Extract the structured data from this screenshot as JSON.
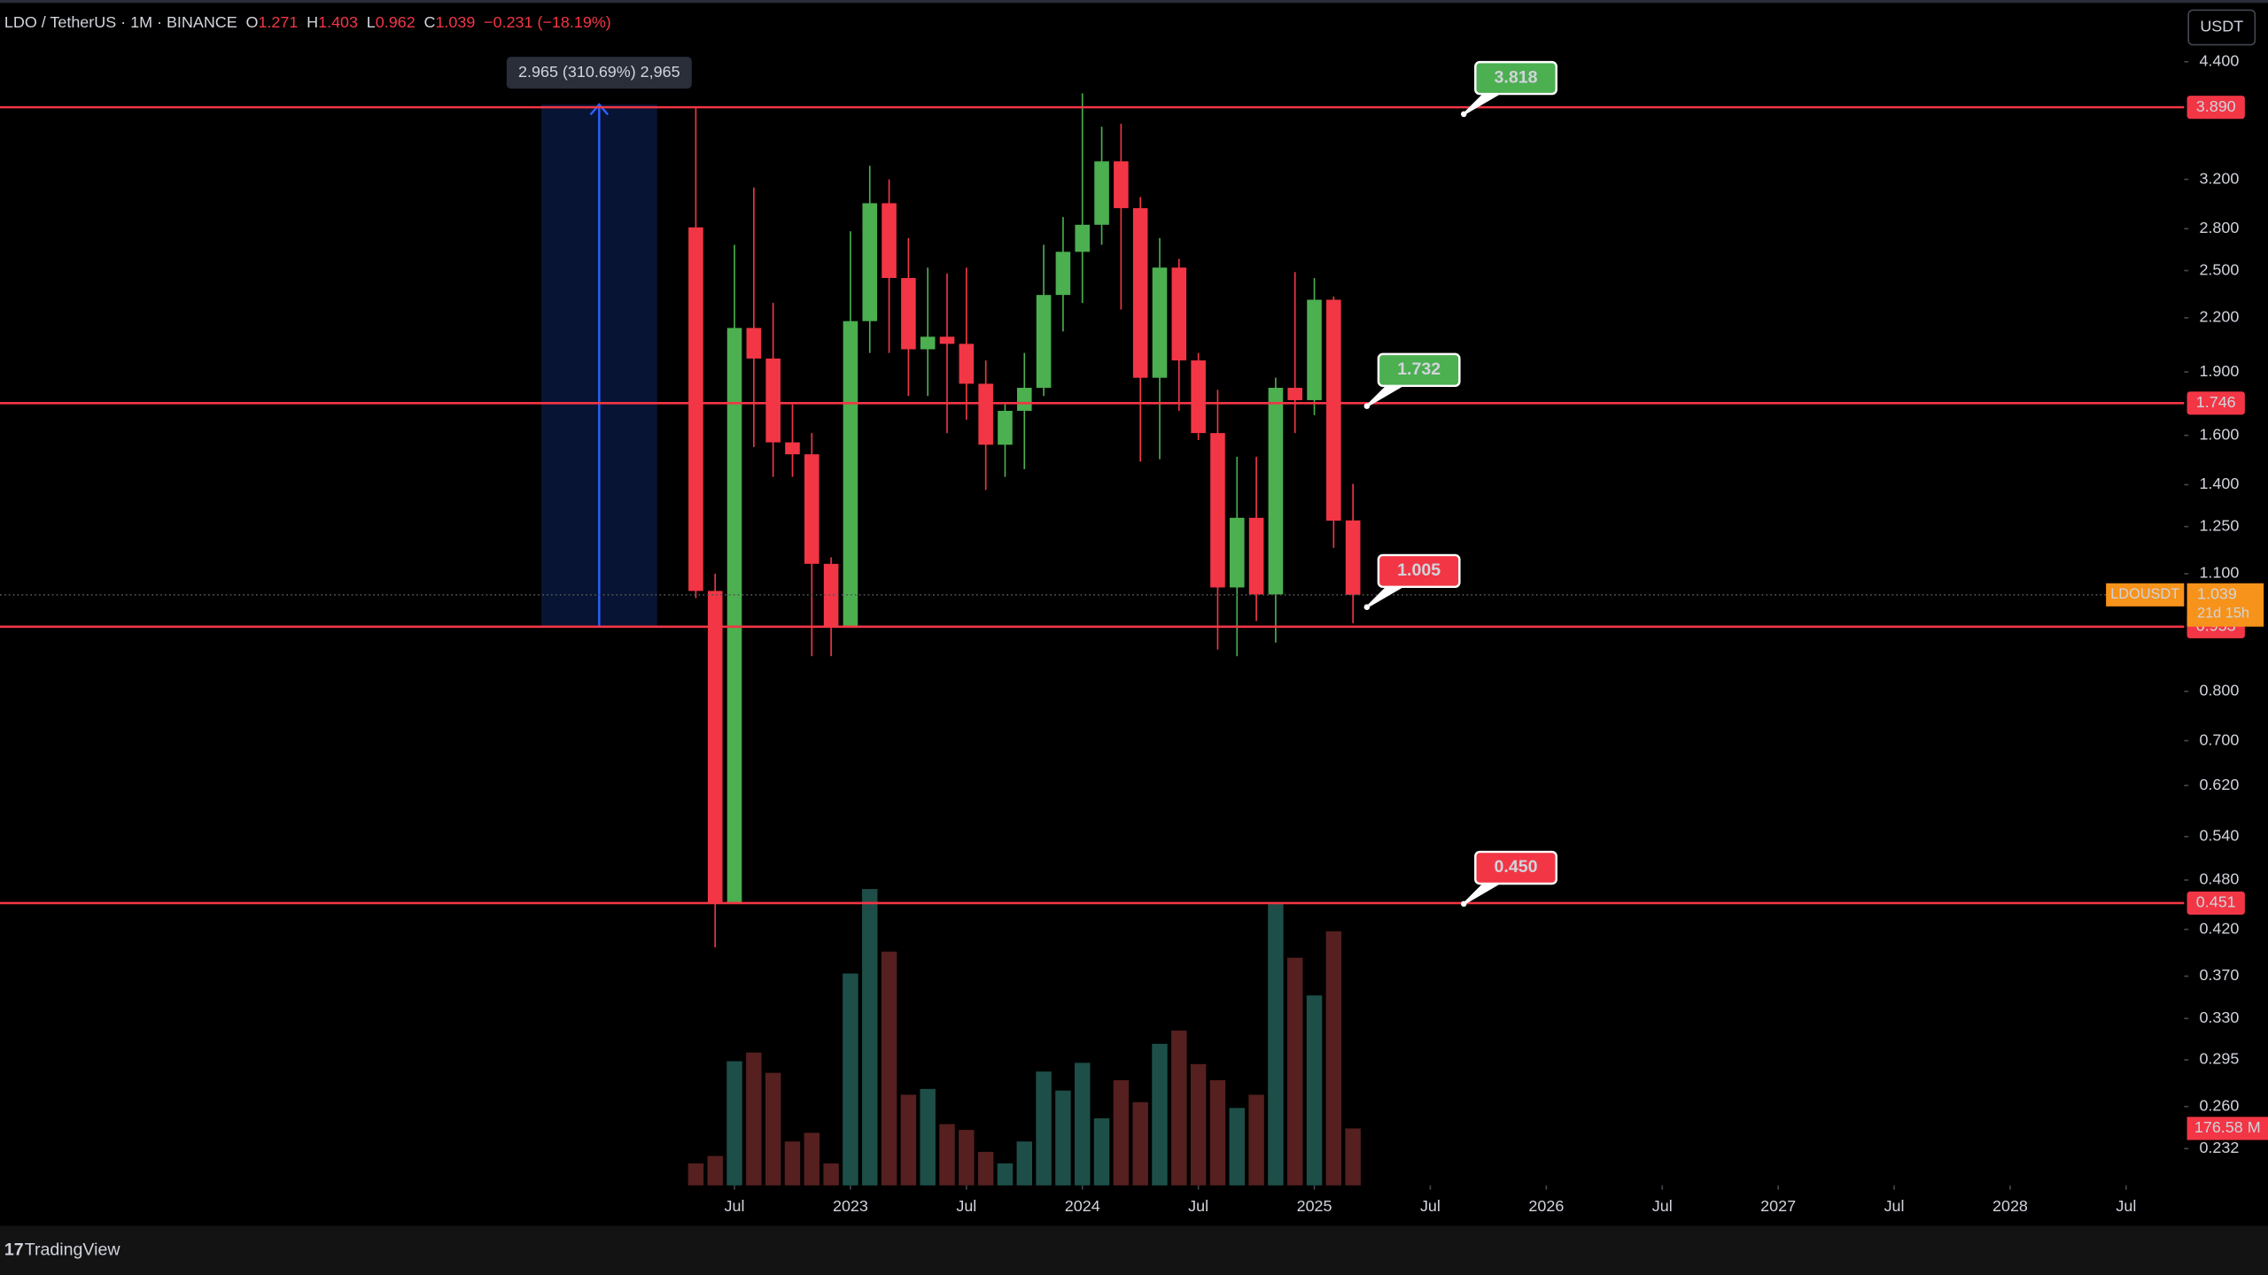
{
  "chart_data": {
    "type": "candlestick",
    "title": "LDO / TetherUS · 1M · BINANCE",
    "legend_ohlc": [
      {
        "key": "O",
        "value": 1.271
      },
      {
        "key": "H",
        "value": 1.403
      },
      {
        "key": "L",
        "value": 0.962
      },
      {
        "key": "C",
        "value": 1.039
      }
    ],
    "change": "−0.231 (−18.19%)",
    "currency": "USDT",
    "brand": "TradingView",
    "x": [
      "2022-05",
      "2022-06",
      "2022-07",
      "2022-08",
      "2022-09",
      "2022-10",
      "2022-11",
      "2022-12",
      "2023-01",
      "2023-02",
      "2023-03",
      "2023-04",
      "2023-05",
      "2023-06",
      "2023-07",
      "2023-08",
      "2023-09",
      "2023-10",
      "2023-11",
      "2023-12",
      "2024-01",
      "2024-02",
      "2024-03",
      "2024-04",
      "2024-05",
      "2024-06",
      "2024-07",
      "2024-08",
      "2024-09",
      "2024-10",
      "2024-11",
      "2024-12",
      "2025-01",
      "2025-02",
      "2025-03"
    ],
    "open": [
      2.81,
      1.05,
      0.45,
      2.14,
      1.97,
      1.57,
      1.52,
      1.13,
      0.953,
      2.18,
      3.0,
      2.45,
      2.02,
      2.09,
      2.05,
      1.84,
      1.56,
      1.71,
      1.82,
      2.34,
      2.63,
      2.83,
      3.36,
      2.96,
      1.87,
      2.52,
      1.96,
      1.61,
      1.06,
      1.28,
      1.04,
      1.82,
      1.76,
      2.31,
      1.271
    ],
    "high": [
      3.88,
      1.1,
      2.68,
      3.13,
      2.29,
      1.74,
      1.61,
      1.15,
      2.78,
      3.32,
      3.2,
      2.73,
      2.52,
      2.48,
      2.52,
      1.96,
      1.74,
      2.0,
      2.68,
      2.89,
      4.04,
      3.69,
      3.72,
      3.05,
      2.73,
      2.58,
      2.0,
      1.81,
      1.51,
      1.51,
      1.87,
      2.49,
      2.45,
      2.33,
      1.403
    ],
    "low": [
      1.03,
      0.4,
      0.45,
      1.55,
      1.43,
      1.43,
      0.88,
      0.88,
      0.95,
      2.0,
      2.0,
      1.78,
      1.78,
      1.61,
      1.67,
      1.38,
      1.43,
      1.46,
      1.78,
      2.12,
      2.29,
      2.68,
      2.25,
      1.49,
      1.5,
      1.71,
      1.58,
      0.896,
      0.88,
      0.968,
      0.913,
      1.61,
      1.69,
      1.18,
      0.962
    ],
    "close": [
      1.05,
      0.45,
      2.14,
      1.97,
      1.57,
      1.52,
      1.13,
      0.953,
      2.18,
      3.0,
      2.45,
      2.02,
      2.09,
      2.05,
      1.84,
      1.56,
      1.71,
      1.82,
      2.34,
      2.63,
      2.83,
      3.36,
      2.96,
      1.87,
      2.52,
      1.96,
      1.61,
      1.06,
      1.28,
      1.04,
      1.82,
      1.76,
      2.31,
      1.27,
      1.039
    ],
    "volume": [
      68,
      91,
      385,
      412,
      349,
      136,
      163,
      68,
      657,
      919,
      725,
      281,
      299,
      190,
      172,
      104,
      68,
      136,
      353,
      294,
      380,
      208,
      326,
      258,
      439,
      480,
      376,
      326,
      240,
      281,
      878,
      706,
      589,
      788,
      176.58
    ],
    "volume_value_labels": [
      null,
      null,
      null,
      null,
      null,
      null,
      null,
      null,
      null,
      null,
      null,
      null,
      null,
      null,
      null,
      null,
      null,
      null,
      null,
      null,
      null,
      null,
      null,
      null,
      null,
      null,
      null,
      null,
      null,
      null,
      null,
      null,
      null,
      null,
      "176.58 M"
    ],
    "up_color": "#4caf50",
    "down_color": "#f23645",
    "volume_up_color": "#1d4f48",
    "volume_down_color": "#55201f",
    "log_scale": true,
    "grid": false,
    "xlim": [
      "2019-05",
      "2028-10"
    ],
    "xticks": [
      {
        "value": "2022-07",
        "label": "Jul"
      },
      {
        "value": "2023-01",
        "label": "2023"
      },
      {
        "value": "2023-07",
        "label": "Jul"
      },
      {
        "value": "2024-01",
        "label": "2024"
      },
      {
        "value": "2024-07",
        "label": "Jul"
      },
      {
        "value": "2025-01",
        "label": "2025"
      },
      {
        "value": "2025-07",
        "label": "Jul"
      },
      {
        "value": "2026-01",
        "label": "2026"
      },
      {
        "value": "2026-07",
        "label": "Jul"
      },
      {
        "value": "2027-01",
        "label": "2027"
      },
      {
        "value": "2027-07",
        "label": "Jul"
      },
      {
        "value": "2028-01",
        "label": "2028"
      },
      {
        "value": "2028-07",
        "label": "Jul"
      }
    ],
    "ylim": [
      0.21,
      5.14
    ],
    "yticks": [
      {
        "value": 4.4,
        "label": "4.400"
      },
      {
        "value": 3.2,
        "label": "3.200"
      },
      {
        "value": 2.8,
        "label": "2.800"
      },
      {
        "value": 2.5,
        "label": "2.500"
      },
      {
        "value": 2.2,
        "label": "2.200"
      },
      {
        "value": 1.9,
        "label": "1.900"
      },
      {
        "value": 1.6,
        "label": "1.600"
      },
      {
        "value": 1.4,
        "label": "1.400"
      },
      {
        "value": 1.25,
        "label": "1.250"
      },
      {
        "value": 1.1,
        "label": "1.100"
      },
      {
        "value": 0.8,
        "label": "0.800"
      },
      {
        "value": 0.7,
        "label": "0.700"
      },
      {
        "value": 0.62,
        "label": "0.620"
      },
      {
        "value": 0.54,
        "label": "0.540"
      },
      {
        "value": 0.48,
        "label": "0.480"
      },
      {
        "value": 0.42,
        "label": "0.420"
      },
      {
        "value": 0.37,
        "label": "0.370"
      },
      {
        "value": 0.33,
        "label": "0.330"
      },
      0.295,
      {
        "value": 0.26,
        "label": "0.260"
      },
      0.232
    ],
    "levels": [
      {
        "value": 3.89,
        "label": "3.890"
      },
      1.746,
      0.953,
      0.451
    ],
    "level_color": "#f23645",
    "callouts": [
      {
        "value": 3.818,
        "color": "#4caf50"
      },
      {
        "value": 1.732,
        "color": "#4caf50"
      },
      {
        "value": 1.005,
        "color": "#f23645"
      },
      {
        "value": {
          "value": 0.45,
          "label": "0.450"
        },
        "color": "#f23645"
      }
    ],
    "last_price": {
      "symbol": "LDOUSDT",
      "value": 1.039,
      "countdown": "21d 15h",
      "color": "#f7931a"
    },
    "measure": {
      "label": "2.965 (310.69%) 2,965",
      "from": 0.954,
      "to": 3.919,
      "start": "2021-09",
      "end": "2022-03"
    }
  }
}
